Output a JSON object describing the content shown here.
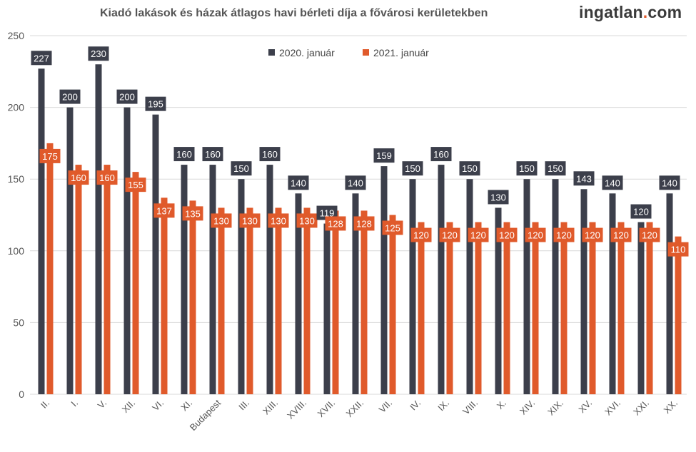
{
  "header": {
    "title": "Kiadó lakások és házak átlagos havi bérleti díja a fővárosi kerületekben",
    "logo": {
      "main": "ingatlan",
      "dot": ".",
      "suffix": "com"
    }
  },
  "colors": {
    "series_2020": "#3c3f4b",
    "series_2021": "#e05a2b",
    "grid": "#d9d9d9",
    "axis_text": "#555555"
  },
  "chart_data": {
    "type": "bar",
    "title": "Kiadó lakások és házak átlagos havi bérleti díja a fővárosi kerületekben",
    "xlabel": "",
    "ylabel": "",
    "ylim": [
      0,
      250
    ],
    "yticks": [
      0,
      50,
      100,
      150,
      200,
      250
    ],
    "grid": true,
    "legend_position": "top-center",
    "categories": [
      "II.",
      "I.",
      "V.",
      "XII.",
      "VI.",
      "XI.",
      "Budapest",
      "III.",
      "XIII.",
      "XVIII.",
      "XVII.",
      "XXII.",
      "VII.",
      "IV.",
      "IX.",
      "VIII.",
      "X.",
      "XIV.",
      "XIX.",
      "XV.",
      "XVI.",
      "XXI.",
      "XX."
    ],
    "series": [
      {
        "name": "2020. január",
        "values": [
          227,
          200,
          230,
          200,
          195,
          160,
          160,
          150,
          160,
          140,
          119,
          140,
          159,
          150,
          160,
          150,
          130,
          150,
          150,
          143,
          140,
          120,
          140
        ]
      },
      {
        "name": "2021. január",
        "values": [
          175,
          160,
          160,
          155,
          137,
          135,
          130,
          130,
          130,
          130,
          128,
          128,
          125,
          120,
          120,
          120,
          120,
          120,
          120,
          120,
          120,
          120,
          110
        ]
      }
    ]
  }
}
